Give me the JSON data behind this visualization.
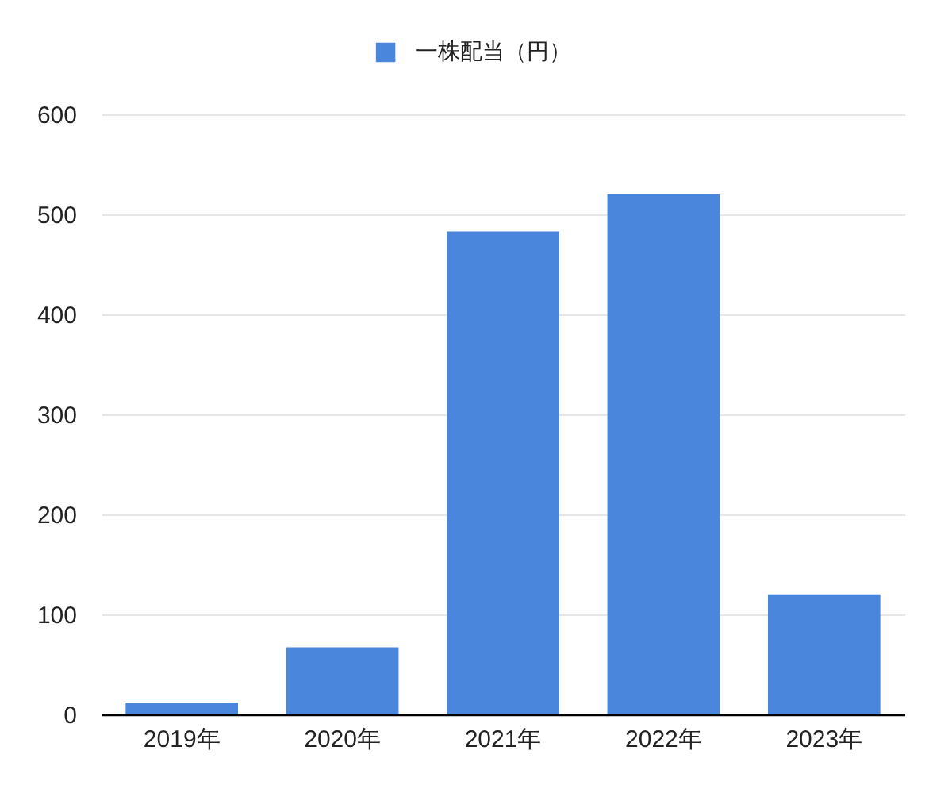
{
  "chart_data": {
    "type": "bar",
    "categories": [
      "2019年",
      "2020年",
      "2021年",
      "2022年",
      "2023年"
    ],
    "series": [
      {
        "name": "一株配当（円）",
        "color": "#4a86dc",
        "values": [
          12,
          67,
          483,
          520,
          120
        ]
      }
    ],
    "ylim": [
      0,
      600
    ],
    "yticks": [
      0,
      100,
      200,
      300,
      400,
      500,
      600
    ],
    "grid": "y",
    "legend": "top"
  }
}
